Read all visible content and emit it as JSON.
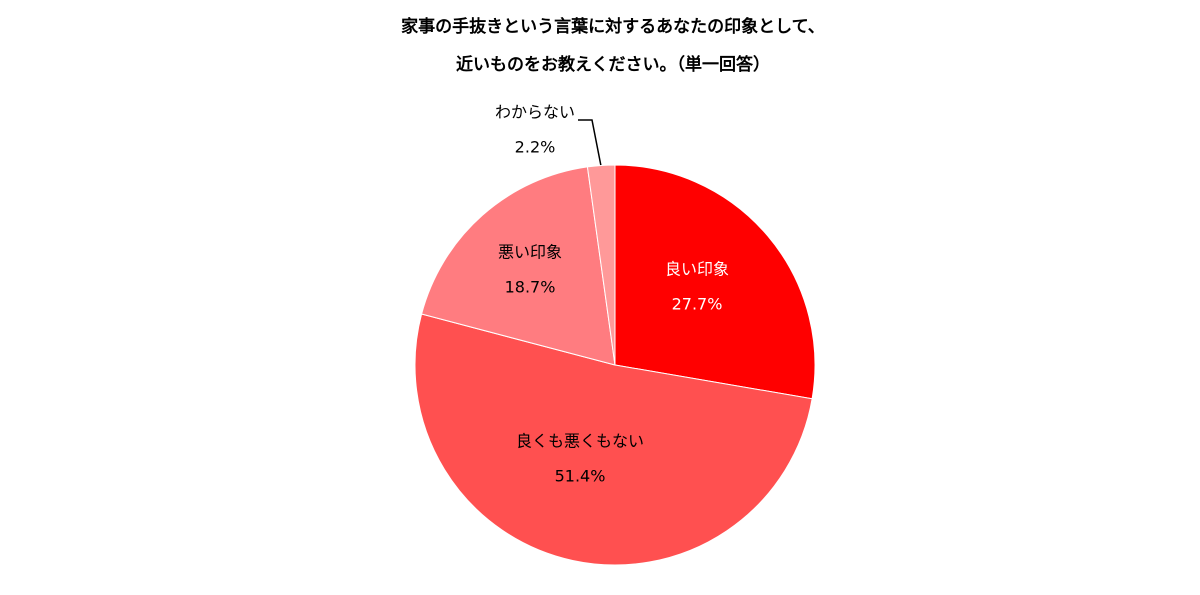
{
  "chart_data": {
    "type": "pie",
    "title": [
      "家事の手抜きという言葉に対するあなたの印象として、",
      "近いものをお教えください。（単一回答）"
    ],
    "categories": [
      "良い印象",
      "良くも悪くもない",
      "悪い印象",
      "わからない"
    ],
    "values": [
      27.7,
      51.4,
      18.7,
      2.2
    ],
    "value_labels": [
      "27.7%",
      "51.4%",
      "18.7%",
      "2.2%"
    ],
    "colors": [
      "#ff0000",
      "#ff5050",
      "#ff7c80",
      "#ff9999"
    ]
  }
}
